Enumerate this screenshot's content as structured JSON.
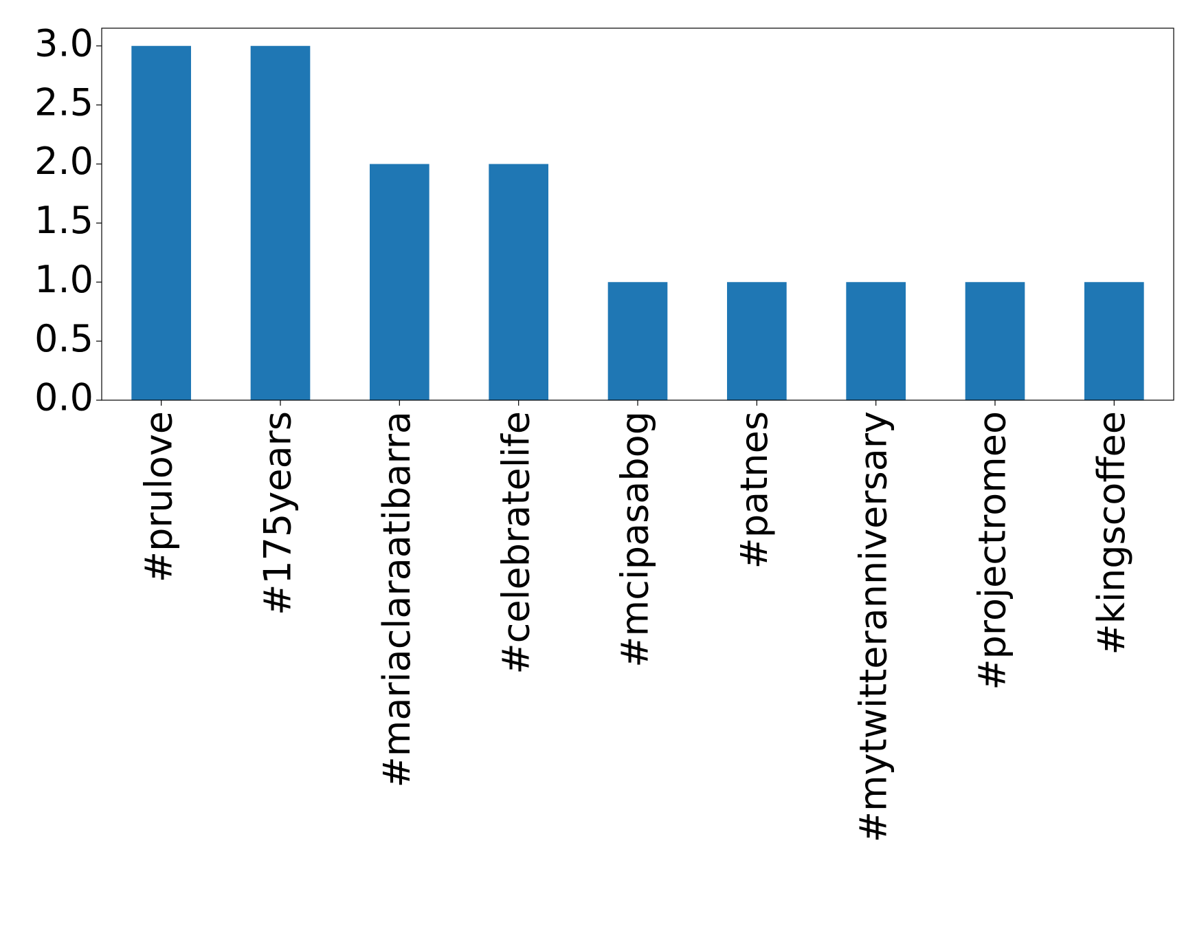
{
  "chart_data": {
    "type": "bar",
    "categories": [
      "#prulove",
      "#175years",
      "#mariaclaraatibarra",
      "#celebratelife",
      "#mcipasabog",
      "#patnes",
      "#mytwitteranniversary",
      "#projectromeo",
      "#kingscoffee"
    ],
    "values": [
      3,
      3,
      2,
      2,
      1,
      1,
      1,
      1,
      1
    ],
    "color": "#1f77b4",
    "ylim": [
      0,
      3.15
    ],
    "yticks": [
      {
        "value": 0,
        "label": "0.0"
      },
      {
        "value": 0.5,
        "label": "0.5"
      },
      {
        "value": 1,
        "label": "1.0"
      },
      {
        "value": 1.5,
        "label": "1.5"
      },
      {
        "value": 2,
        "label": "2.0"
      },
      {
        "value": 2.5,
        "label": "2.5"
      },
      {
        "value": 3,
        "label": "3.0"
      }
    ],
    "grid": false
  }
}
